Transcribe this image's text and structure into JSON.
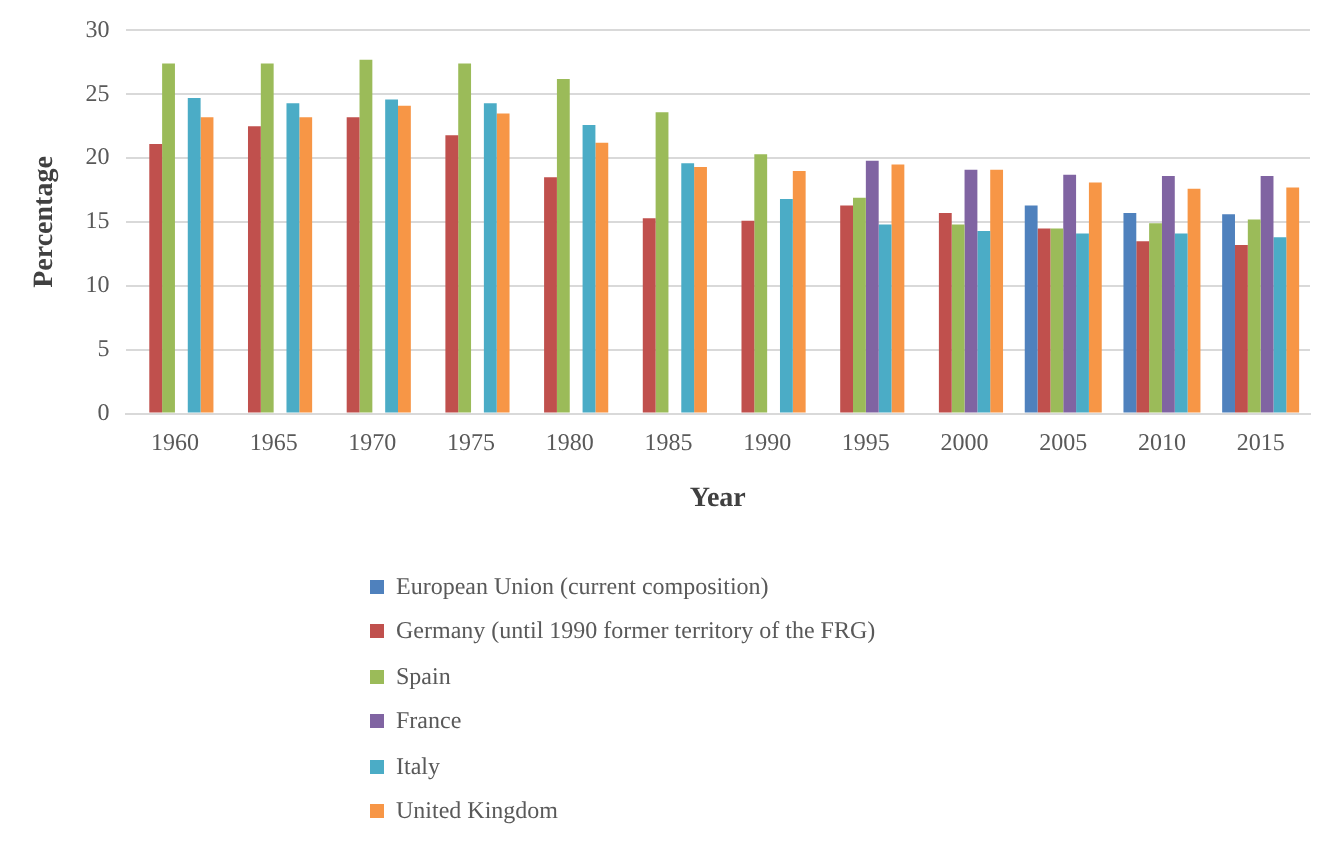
{
  "chart_data": {
    "type": "bar",
    "xlabel": "Year",
    "ylabel": "Percentage",
    "categories": [
      "1960",
      "1965",
      "1970",
      "1975",
      "1980",
      "1985",
      "1990",
      "1995",
      "2000",
      "2005",
      "2010",
      "2015"
    ],
    "series": [
      {
        "name": "European Union (current composition)",
        "color": "#4f81bd",
        "values": [
          null,
          null,
          null,
          null,
          null,
          null,
          null,
          null,
          null,
          16.3,
          15.7,
          15.6
        ]
      },
      {
        "name": "Germany (until 1990 former territory of the FRG)",
        "color": "#c0504d",
        "values": [
          21.1,
          22.5,
          23.2,
          21.8,
          18.5,
          15.3,
          15.1,
          16.3,
          15.7,
          14.5,
          13.5,
          13.2
        ]
      },
      {
        "name": "Spain",
        "color": "#9bbb59",
        "values": [
          27.4,
          27.4,
          27.7,
          27.4,
          26.2,
          23.6,
          20.3,
          16.9,
          14.8,
          14.5,
          14.9,
          15.2
        ]
      },
      {
        "name": "France",
        "color": "#8064a2",
        "values": [
          null,
          null,
          null,
          null,
          null,
          null,
          null,
          19.8,
          19.1,
          18.7,
          18.6,
          18.6
        ]
      },
      {
        "name": "Italy",
        "color": "#4bacc6",
        "values": [
          24.7,
          24.3,
          24.6,
          24.3,
          22.6,
          19.6,
          16.8,
          14.8,
          14.3,
          14.1,
          14.1,
          13.8
        ]
      },
      {
        "name": "United Kingdom",
        "color": "#f79646",
        "values": [
          23.2,
          23.2,
          24.1,
          23.5,
          21.2,
          19.3,
          19.0,
          19.5,
          19.1,
          18.1,
          17.6,
          17.7
        ]
      }
    ],
    "ylim": [
      0,
      30
    ],
    "yticks": [
      0,
      5,
      10,
      15,
      20,
      25,
      30
    ],
    "grid": "y",
    "legend": "bottom"
  }
}
